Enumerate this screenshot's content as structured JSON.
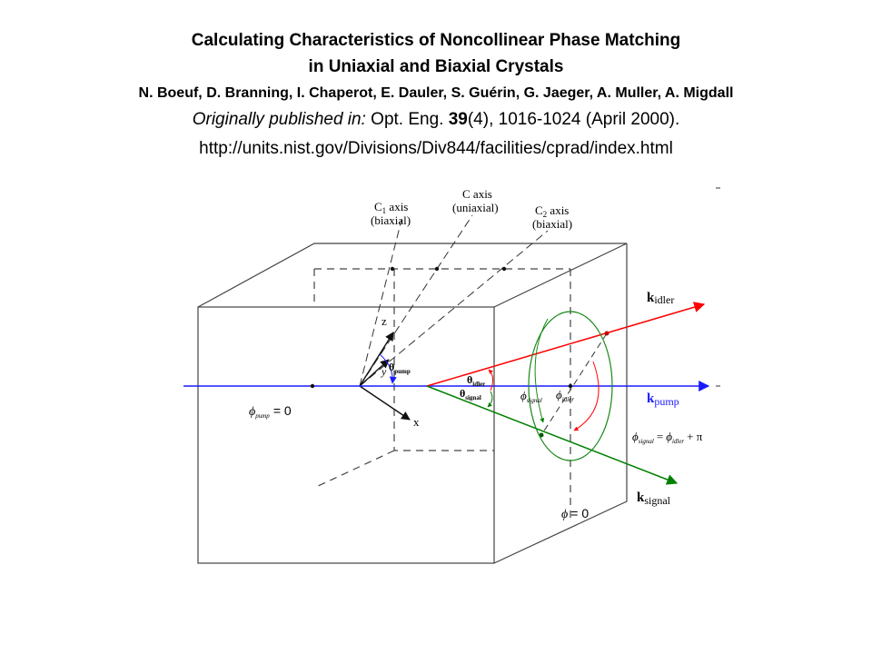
{
  "header": {
    "title_line1": "Calculating Characteristics of Noncollinear Phase Matching",
    "title_line2": "in Uniaxial and Biaxial Crystals",
    "authors": "N. Boeuf, D. Branning, I. Chaperot, E. Dauler, S. Guérin, G. Jaeger, A. Muller, A. Migdall",
    "pub_prefix": "Originally published in:",
    "pub_journal": " Opt. Eng. ",
    "pub_volume": "39",
    "pub_rest": "(4), 1016-1024  (April 2000).",
    "url": "http://units.nist.gov/Divisions/Div844/facilities/cprad/index.html"
  },
  "diagram": {
    "labels": {
      "c1_axis": "C",
      "c1_sub": "1",
      "c1_axis_rest": " axis",
      "c1_type": "(biaxial)",
      "c_axis": "C axis",
      "c_type": "(uniaxial)",
      "c2_axis": "C",
      "c2_sub": "2",
      "c2_axis_rest": " axis",
      "c2_type": "(biaxial)",
      "axis_z": "z",
      "axis_y": "y",
      "axis_x": "x",
      "k": "k",
      "idler": "idler",
      "pump": "pump",
      "signal": "signal",
      "theta": "θ",
      "phi": "ϕ",
      "phi_pump_eq": "= 0",
      "phi_zero": "= 0",
      "phi_signal_eq_rest": "+ π",
      "equals": "="
    },
    "colors": {
      "idler": "#ff0000",
      "pump": "#1a1aff",
      "signal": "#008000",
      "cone": "#1a8a1a",
      "crystal": "#444444"
    }
  }
}
